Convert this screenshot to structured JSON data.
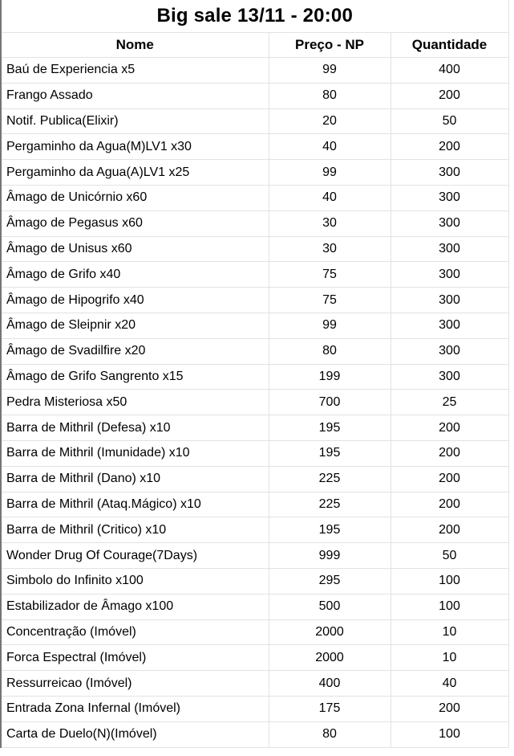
{
  "title": "Big sale 13/11 - 20:00",
  "chart_data": {
    "type": "table",
    "title": "Big sale 13/11 - 20:00",
    "columns": [
      "Nome",
      "Preço - NP",
      "Quantidade"
    ],
    "rows": [
      [
        "Baú de Experiencia x5",
        99,
        400
      ],
      [
        "Frango Assado",
        80,
        200
      ],
      [
        "Notif. Publica(Elixir)",
        20,
        50
      ],
      [
        "Pergaminho da Agua(M)LV1 x30",
        40,
        200
      ],
      [
        "Pergaminho da Agua(A)LV1 x25",
        99,
        300
      ],
      [
        "Âmago de Unicórnio x60",
        40,
        300
      ],
      [
        "Âmago de Pegasus x60",
        30,
        300
      ],
      [
        "Âmago de Unisus x60",
        30,
        300
      ],
      [
        "Âmago de Grifo x40",
        75,
        300
      ],
      [
        "Âmago de Hipogrifo x40",
        75,
        300
      ],
      [
        "Âmago de Sleipnir x20",
        99,
        300
      ],
      [
        "Âmago de Svadilfire x20",
        80,
        300
      ],
      [
        "Âmago de Grifo Sangrento x15",
        199,
        300
      ],
      [
        "Pedra Misteriosa x50",
        700,
        25
      ],
      [
        "Barra de Mithril (Defesa) x10",
        195,
        200
      ],
      [
        "Barra de Mithril (Imunidade) x10",
        195,
        200
      ],
      [
        "Barra de Mithril (Dano) x10",
        225,
        200
      ],
      [
        "Barra de Mithril (Ataq.Mágico) x10",
        225,
        200
      ],
      [
        "Barra de Mithril (Critico) x10",
        195,
        200
      ],
      [
        "Wonder Drug Of Courage(7Days)",
        999,
        50
      ],
      [
        "Simbolo do Infinito x100",
        295,
        100
      ],
      [
        "Estabilizador de Âmago x100",
        500,
        100
      ],
      [
        "Concentração (Imóvel)",
        2000,
        10
      ],
      [
        "Forca Espectral (Imóvel)",
        2000,
        10
      ],
      [
        "Ressurreicao (Imóvel)",
        400,
        40
      ],
      [
        "Entrada Zona Infernal (Imóvel)",
        175,
        200
      ],
      [
        "Carta de Duelo(N)(Imóvel)",
        80,
        100
      ]
    ]
  },
  "colors": {
    "background": "#ffffff",
    "grid_border": "#e2e2e2",
    "outer_left_border": "#757575",
    "text": "#000000"
  },
  "layout_hints": {
    "grid": "on",
    "numeric_alignment": "center",
    "name_alignment": "left"
  }
}
